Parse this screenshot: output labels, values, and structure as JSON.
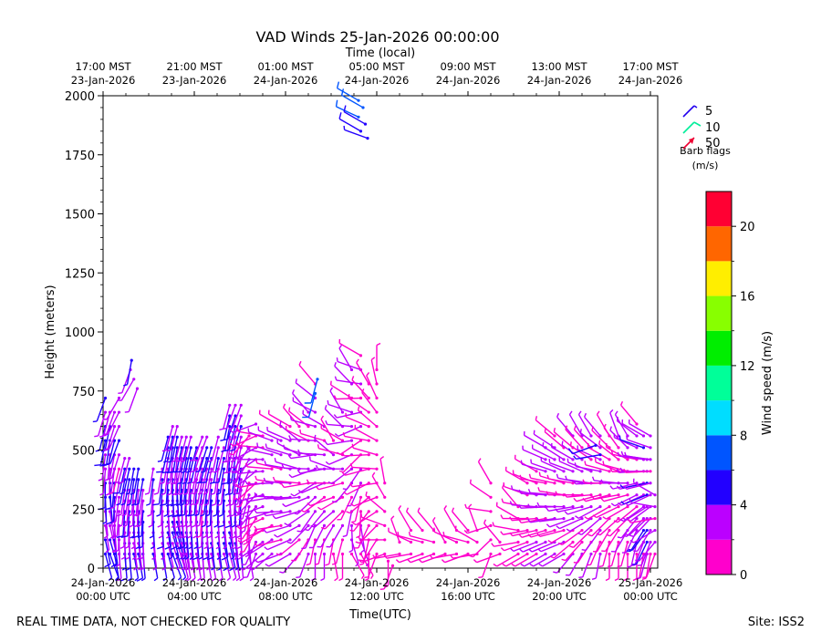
{
  "chart_data": {
    "type": "wind-barb-time-height",
    "title": "VAD Winds 25-Jan-2026 00:00:00",
    "top_axis_title": "Time (local)",
    "xlabel": "Time(UTC)",
    "ylabel": "Height (meters)",
    "x_range_hours": [
      0,
      24.4
    ],
    "ylim": [
      0,
      2000
    ],
    "y_ticks": [
      "0",
      "250",
      "500",
      "750",
      "1000",
      "1250",
      "1500",
      "1750",
      "2000"
    ],
    "bottom_ticks": [
      {
        "hour": 0,
        "line1": "24-Jan-2026",
        "line2": "00:00 UTC"
      },
      {
        "hour": 4,
        "line1": "24-Jan-2026",
        "line2": "04:00 UTC"
      },
      {
        "hour": 8,
        "line1": "24-Jan-2026",
        "line2": "08:00 UTC"
      },
      {
        "hour": 12,
        "line1": "24-Jan-2026",
        "line2": "12:00 UTC"
      },
      {
        "hour": 16,
        "line1": "24-Jan-2026",
        "line2": "16:00 UTC"
      },
      {
        "hour": 20,
        "line1": "24-Jan-2026",
        "line2": "20:00 UTC"
      },
      {
        "hour": 24,
        "line1": "25-Jan-2026",
        "line2": "00:00 UTC"
      }
    ],
    "top_ticks": [
      {
        "hour": 0,
        "line1": "17:00 MST",
        "line2": "23-Jan-2026"
      },
      {
        "hour": 4,
        "line1": "21:00 MST",
        "line2": "23-Jan-2026"
      },
      {
        "hour": 8,
        "line1": "01:00 MST",
        "line2": "24-Jan-2026"
      },
      {
        "hour": 12,
        "line1": "05:00 MST",
        "line2": "24-Jan-2026"
      },
      {
        "hour": 16,
        "line1": "09:00 MST",
        "line2": "24-Jan-2026"
      },
      {
        "hour": 20,
        "line1": "13:00 MST",
        "line2": "24-Jan-2026"
      },
      {
        "hour": 24,
        "line1": "17:00 MST",
        "line2": "24-Jan-2026"
      }
    ],
    "barb_legend": {
      "entries": [
        "5",
        "10",
        "50"
      ],
      "colors": [
        "#2200ee",
        "#00ee99",
        "#ee0033"
      ],
      "caption_line1": "Barb flags",
      "caption_line2": "(m/s)"
    },
    "colorbar": {
      "label": "Wind speed (m/s)",
      "range": [
        0,
        22
      ],
      "tick_labels": [
        "0",
        "4",
        "8",
        "12",
        "16",
        "20"
      ],
      "bins": [
        {
          "from": 0,
          "to": 2,
          "color": "#ff00cc"
        },
        {
          "from": 2,
          "to": 4,
          "color": "#bb00ff"
        },
        {
          "from": 4,
          "to": 6,
          "color": "#2200ff"
        },
        {
          "from": 6,
          "to": 8,
          "color": "#0055ff"
        },
        {
          "from": 8,
          "to": 10,
          "color": "#00ddff"
        },
        {
          "from": 10,
          "to": 12,
          "color": "#00ff99"
        },
        {
          "from": 12,
          "to": 14,
          "color": "#00ee00"
        },
        {
          "from": 14,
          "to": 16,
          "color": "#88ff00"
        },
        {
          "from": 16,
          "to": 18,
          "color": "#ffee00"
        },
        {
          "from": 18,
          "to": 20,
          "color": "#ff6600"
        },
        {
          "from": 20,
          "to": 22,
          "color": "#ff0033"
        }
      ]
    },
    "profiles": [
      {
        "hour": 0.1,
        "top": 720,
        "speed": 4.8,
        "dir_start": 165,
        "dir_end": 200,
        "step": 60
      },
      {
        "hour": 0.3,
        "top": 690,
        "speed": 5.2,
        "dir_start": 160,
        "dir_end": 195,
        "step": 60
      },
      {
        "hour": 0.5,
        "top": 660,
        "speed": 4.5,
        "dir_start": 170,
        "dir_end": 200,
        "step": 60
      },
      {
        "hour": 0.7,
        "top": 740,
        "speed": 3.5,
        "dir_start": 175,
        "dir_end": 210,
        "step": 60
      },
      {
        "hour": 0.95,
        "top": 500,
        "speed": 4.6,
        "dir_start": 175,
        "dir_end": 195,
        "step": 45
      },
      {
        "hour": 1.15,
        "top": 470,
        "speed": 4.4,
        "dir_start": 175,
        "dir_end": 195,
        "step": 45
      },
      {
        "hour": 1.35,
        "top": 450,
        "speed": 4.2,
        "dir_start": 170,
        "dir_end": 190,
        "step": 45
      },
      {
        "hour": 1.55,
        "top": 420,
        "speed": 4.5,
        "dir_start": 170,
        "dir_end": 190,
        "step": 45
      },
      {
        "hour": 1.75,
        "top": 380,
        "speed": 4.1,
        "dir_start": 175,
        "dir_end": 190,
        "step": 45
      },
      {
        "hour": 2.2,
        "top": 460,
        "speed": 4.3,
        "dir_start": 170,
        "dir_end": 190,
        "step": 45
      },
      {
        "hour": 2.6,
        "top": 450,
        "speed": 4.5,
        "dir_start": 170,
        "dir_end": 190,
        "step": 45
      },
      {
        "hour": 2.85,
        "top": 560,
        "speed": 4.9,
        "dir_start": 165,
        "dir_end": 195,
        "step": 45
      },
      {
        "hour": 3.05,
        "top": 600,
        "speed": 5.1,
        "dir_start": 160,
        "dir_end": 195,
        "step": 45
      },
      {
        "hour": 3.25,
        "top": 620,
        "speed": 5.2,
        "dir_start": 160,
        "dir_end": 195,
        "step": 45
      },
      {
        "hour": 3.45,
        "top": 560,
        "speed": 4.8,
        "dir_start": 165,
        "dir_end": 195,
        "step": 45
      },
      {
        "hour": 3.65,
        "top": 560,
        "speed": 4.6,
        "dir_start": 170,
        "dir_end": 195,
        "step": 45
      },
      {
        "hour": 3.85,
        "top": 570,
        "speed": 4.3,
        "dir_start": 170,
        "dir_end": 195,
        "step": 45
      },
      {
        "hour": 4.1,
        "top": 520,
        "speed": 4.5,
        "dir_start": 170,
        "dir_end": 195,
        "step": 45
      },
      {
        "hour": 4.35,
        "top": 560,
        "speed": 3.6,
        "dir_start": 175,
        "dir_end": 200,
        "step": 45
      },
      {
        "hour": 4.55,
        "top": 580,
        "speed": 4.4,
        "dir_start": 170,
        "dir_end": 200,
        "step": 45
      },
      {
        "hour": 4.75,
        "top": 550,
        "speed": 4.7,
        "dir_start": 170,
        "dir_end": 195,
        "step": 45
      },
      {
        "hour": 5.05,
        "top": 580,
        "speed": 4.3,
        "dir_start": 170,
        "dir_end": 195,
        "step": 45
      },
      {
        "hour": 5.3,
        "top": 540,
        "speed": 4.9,
        "dir_start": 165,
        "dir_end": 195,
        "step": 45
      },
      {
        "hour": 5.55,
        "top": 700,
        "speed": 4.6,
        "dir_start": 165,
        "dir_end": 195,
        "step": 45
      },
      {
        "hour": 5.8,
        "top": 720,
        "speed": 4.2,
        "dir_start": 170,
        "dir_end": 200,
        "step": 45
      },
      {
        "hour": 6.05,
        "top": 700,
        "speed": 3.8,
        "dir_start": 175,
        "dir_end": 200,
        "step": 45
      },
      {
        "hour": 6.4,
        "top": 600,
        "speed": 3.1,
        "dir_start": 170,
        "dir_end": 220,
        "step": 50
      },
      {
        "hour": 6.7,
        "top": 650,
        "speed": 3.0,
        "dir_start": 200,
        "dir_end": 250,
        "step": 50
      },
      {
        "hour": 7.0,
        "top": 600,
        "speed": 2.6,
        "dir_start": 230,
        "dir_end": 280,
        "step": 50
      },
      {
        "hour": 7.4,
        "top": 560,
        "speed": 3.0,
        "dir_start": 230,
        "dir_end": 290,
        "step": 60
      },
      {
        "hour": 7.8,
        "top": 640,
        "speed": 2.4,
        "dir_start": 250,
        "dir_end": 300,
        "step": 60
      },
      {
        "hour": 8.2,
        "top": 620,
        "speed": 3.4,
        "dir_start": 240,
        "dir_end": 300,
        "step": 60
      },
      {
        "hour": 8.6,
        "top": 620,
        "speed": 3.0,
        "dir_start": 220,
        "dir_end": 320,
        "step": 60
      },
      {
        "hour": 9.0,
        "top": 700,
        "speed": 2.7,
        "dir_start": 200,
        "dir_end": 320,
        "step": 60
      },
      {
        "hour": 9.3,
        "top": 780,
        "speed": 3.4,
        "dir_start": 180,
        "dir_end": 320,
        "step": 60
      },
      {
        "hour": 9.7,
        "top": 600,
        "speed": 3.1,
        "dir_start": 180,
        "dir_end": 300,
        "step": 60
      },
      {
        "hour": 10.1,
        "top": 560,
        "speed": 2.4,
        "dir_start": 170,
        "dir_end": 330,
        "step": 60
      },
      {
        "hour": 10.5,
        "top": 700,
        "speed": 2.0,
        "dir_start": 180,
        "dir_end": 330,
        "step": 60
      },
      {
        "hour": 10.9,
        "top": 850,
        "speed": 3.2,
        "dir_start": 150,
        "dir_end": 330,
        "step": 60
      },
      {
        "hour": 11.3,
        "top": 900,
        "speed": 2.4,
        "dir_start": 150,
        "dir_end": 300,
        "step": 60
      },
      {
        "hour": 11.65,
        "top": 820,
        "speed": 1.6,
        "dir_start": 180,
        "dir_end": 330,
        "step": 60
      },
      {
        "hour": 12.0,
        "top": 850,
        "speed": 1.4,
        "dir_start": 200,
        "dir_end": 360,
        "step": 60
      },
      {
        "hour": 12.35,
        "top": 360,
        "speed": 1.5,
        "dir_start": 250,
        "dir_end": 350,
        "step": 60
      },
      {
        "hour": 13.0,
        "top": 120,
        "speed": 1.3,
        "dir_start": 260,
        "dir_end": 340,
        "step": 50
      },
      {
        "hour": 13.5,
        "top": 200,
        "speed": 1.2,
        "dir_start": 260,
        "dir_end": 330,
        "step": 50
      },
      {
        "hour": 14.0,
        "top": 180,
        "speed": 1.2,
        "dir_start": 250,
        "dir_end": 320,
        "step": 50
      },
      {
        "hour": 14.5,
        "top": 160,
        "speed": 1.1,
        "dir_start": 250,
        "dir_end": 320,
        "step": 50
      },
      {
        "hour": 15.0,
        "top": 150,
        "speed": 1.2,
        "dir_start": 250,
        "dir_end": 330,
        "step": 50
      },
      {
        "hour": 15.5,
        "top": 180,
        "speed": 1.2,
        "dir_start": 260,
        "dir_end": 330,
        "step": 50
      },
      {
        "hour": 16.0,
        "top": 160,
        "speed": 1.1,
        "dir_start": 250,
        "dir_end": 320,
        "step": 50
      },
      {
        "hour": 16.4,
        "top": 200,
        "speed": 1.2,
        "dir_start": 260,
        "dir_end": 340,
        "step": 50
      },
      {
        "hour": 17.0,
        "top": 360,
        "speed": 1.3,
        "dir_start": 200,
        "dir_end": 330,
        "step": 60
      },
      {
        "hour": 17.4,
        "top": 150,
        "speed": 1.1,
        "dir_start": 250,
        "dir_end": 320,
        "step": 50
      },
      {
        "hour": 18.2,
        "top": 300,
        "speed": 1.5,
        "dir_start": 240,
        "dir_end": 320,
        "step": 50
      },
      {
        "hour": 18.6,
        "top": 370,
        "speed": 1.6,
        "dir_start": 240,
        "dir_end": 300,
        "step": 50
      },
      {
        "hour": 19.0,
        "top": 450,
        "speed": 2.0,
        "dir_start": 240,
        "dir_end": 300,
        "step": 50
      },
      {
        "hour": 19.4,
        "top": 520,
        "speed": 2.8,
        "dir_start": 240,
        "dir_end": 300,
        "step": 50
      },
      {
        "hour": 19.8,
        "top": 560,
        "speed": 3.0,
        "dir_start": 240,
        "dir_end": 310,
        "step": 50
      },
      {
        "hour": 20.2,
        "top": 520,
        "speed": 2.4,
        "dir_start": 240,
        "dir_end": 310,
        "step": 50
      },
      {
        "hour": 20.6,
        "top": 560,
        "speed": 2.6,
        "dir_start": 220,
        "dir_end": 320,
        "step": 50
      },
      {
        "hour": 21.0,
        "top": 580,
        "speed": 2.9,
        "dir_start": 210,
        "dir_end": 330,
        "step": 50
      },
      {
        "hour": 21.4,
        "top": 560,
        "speed": 2.6,
        "dir_start": 200,
        "dir_end": 330,
        "step": 50
      },
      {
        "hour": 21.8,
        "top": 560,
        "speed": 3.2,
        "dir_start": 190,
        "dir_end": 320,
        "step": 50
      },
      {
        "hour": 22.2,
        "top": 580,
        "speed": 1.6,
        "dir_start": 180,
        "dir_end": 330,
        "step": 50
      },
      {
        "hour": 22.6,
        "top": 600,
        "speed": 1.8,
        "dir_start": 180,
        "dir_end": 340,
        "step": 50
      },
      {
        "hour": 23.0,
        "top": 580,
        "speed": 2.2,
        "dir_start": 180,
        "dir_end": 330,
        "step": 50
      },
      {
        "hour": 23.4,
        "top": 620,
        "speed": 2.6,
        "dir_start": 180,
        "dir_end": 320,
        "step": 50
      },
      {
        "hour": 23.7,
        "top": 560,
        "speed": 3.6,
        "dir_start": 190,
        "dir_end": 300,
        "step": 50
      },
      {
        "hour": 23.85,
        "top": 500,
        "speed": 4.4,
        "dir_start": 195,
        "dir_end": 280,
        "step": 50
      },
      {
        "hour": 24.0,
        "top": 600,
        "speed": 3.3,
        "dir_start": 190,
        "dir_end": 300,
        "step": 50
      },
      {
        "hour": 24.2,
        "top": 350,
        "speed": 3.0,
        "dir_start": 200,
        "dir_end": 300,
        "step": 50
      }
    ],
    "extra_barbs": [
      {
        "hour": 1.2,
        "height": 840,
        "speed": 3.8,
        "dir": 200
      },
      {
        "hour": 1.35,
        "height": 800,
        "speed": 2.6,
        "dir": 210
      },
      {
        "hour": 1.5,
        "height": 760,
        "speed": 3.2,
        "dir": 200
      },
      {
        "hour": 1.25,
        "height": 880,
        "speed": 4.6,
        "dir": 190
      },
      {
        "hour": 9.4,
        "height": 800,
        "speed": 6.5,
        "dir": 195
      },
      {
        "hour": 9.3,
        "height": 740,
        "speed": 6.2,
        "dir": 195
      },
      {
        "hour": 21.6,
        "height": 520,
        "speed": 5.0,
        "dir": 250
      },
      {
        "hour": 21.8,
        "height": 480,
        "speed": 4.6,
        "dir": 260
      },
      {
        "hour": 11.2,
        "height": 1980,
        "speed": 6.8,
        "dir": 300
      },
      {
        "hour": 11.4,
        "height": 1950,
        "speed": 7.1,
        "dir": 300
      },
      {
        "hour": 11.2,
        "height": 1910,
        "speed": 6.9,
        "dir": 295
      },
      {
        "hour": 11.5,
        "height": 1880,
        "speed": 5.8,
        "dir": 300
      },
      {
        "hour": 11.3,
        "height": 1850,
        "speed": 5.4,
        "dir": 300
      },
      {
        "hour": 11.6,
        "height": 1820,
        "speed": 4.8,
        "dir": 290
      },
      {
        "hour": 12.5,
        "height": 30,
        "speed": 1.0,
        "dir": 180
      },
      {
        "hour": 12.7,
        "height": 10,
        "speed": 0.8,
        "dir": 200
      }
    ]
  },
  "footer": {
    "quality_note": "REAL TIME DATA, NOT CHECKED FOR QUALITY",
    "site": "Site: ISS2"
  }
}
